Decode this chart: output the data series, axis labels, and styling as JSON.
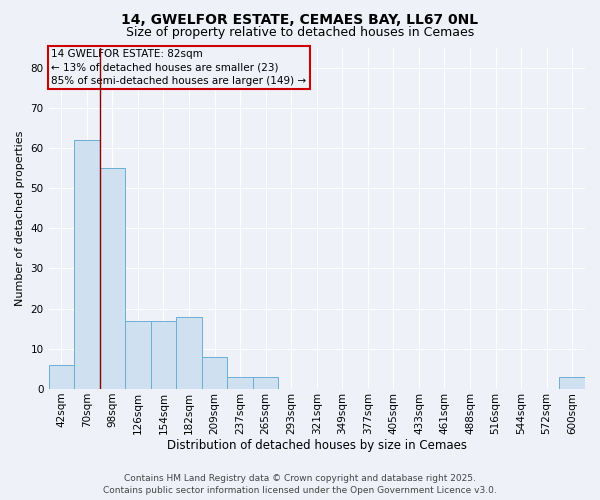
{
  "title": "14, GWELFOR ESTATE, CEMAES BAY, LL67 0NL",
  "subtitle": "Size of property relative to detached houses in Cemaes",
  "xlabel": "Distribution of detached houses by size in Cemaes",
  "ylabel": "Number of detached properties",
  "bar_color": "#cfe0f0",
  "bar_edge_color": "#6aaed6",
  "categories": [
    "42sqm",
    "70sqm",
    "98sqm",
    "126sqm",
    "154sqm",
    "182sqm",
    "209sqm",
    "237sqm",
    "265sqm",
    "293sqm",
    "321sqm",
    "349sqm",
    "377sqm",
    "405sqm",
    "433sqm",
    "461sqm",
    "488sqm",
    "516sqm",
    "544sqm",
    "572sqm",
    "600sqm"
  ],
  "values": [
    6,
    62,
    55,
    17,
    17,
    18,
    8,
    3,
    3,
    0,
    0,
    0,
    0,
    0,
    0,
    0,
    0,
    0,
    0,
    0,
    3
  ],
  "ylim": [
    0,
    85
  ],
  "yticks": [
    0,
    10,
    20,
    30,
    40,
    50,
    60,
    70,
    80
  ],
  "property_label": "14 GWELFOR ESTATE: 82sqm",
  "smaller_pct": "13%",
  "smaller_n": 23,
  "larger_pct": "85%",
  "larger_n": 149,
  "vline_x": 1.5,
  "vline_color": "#8b0000",
  "annotation_box_color": "#cc0000",
  "background_color": "#eef2f8",
  "grid_color": "#ffffff",
  "footer1": "Contains HM Land Registry data © Crown copyright and database right 2025.",
  "footer2": "Contains public sector information licensed under the Open Government Licence v3.0.",
  "title_fontsize": 10,
  "subtitle_fontsize": 9,
  "ylabel_fontsize": 8,
  "xlabel_fontsize": 8.5,
  "tick_fontsize": 7.5,
  "ann_fontsize": 7.5,
  "footer_fontsize": 6.5
}
